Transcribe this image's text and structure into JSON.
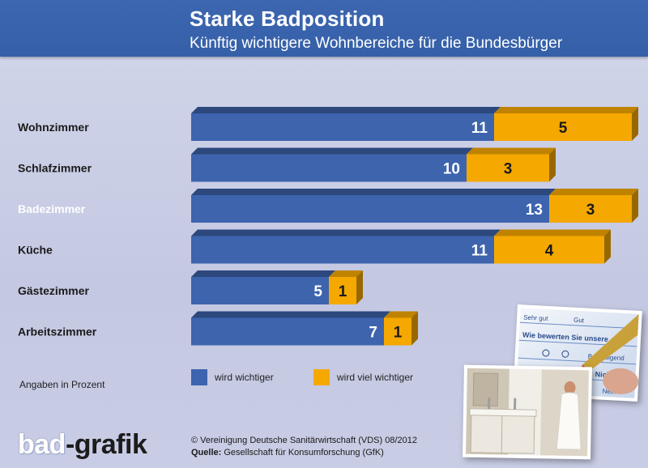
{
  "header": {
    "title": "Starke Badposition",
    "subtitle": "Künftig wichtigere Wohnbereiche für die Bundesbürger"
  },
  "chart_data": {
    "type": "bar",
    "orientation": "horizontal",
    "stacked": true,
    "categories": [
      "Wohnzimmer",
      "Schlafzimmer",
      "Badezimmer",
      "Küche",
      "Gästezimmer",
      "Arbeitszimmer"
    ],
    "highlighted_category": "Badezimmer",
    "series": [
      {
        "name": "wird wichtiger",
        "values": [
          11,
          10,
          13,
          11,
          5,
          7
        ],
        "color": "#3d64ad"
      },
      {
        "name": "wird viel wichtiger",
        "values": [
          5,
          3,
          3,
          4,
          1,
          1
        ],
        "color": "#f5a800"
      }
    ],
    "bar_style": "3d"
  },
  "note": "Angaben in Prozent",
  "logo": {
    "part1": "bad",
    "part2": "-grafik"
  },
  "footer": {
    "copyright": "© Vereinigung Deutsche Sanitärwirtschaft (VDS)  08/2012",
    "source_label": "Quelle:",
    "source_text": "Gesellschaft für Konsumforschung (GfK)"
  },
  "photo_questionnaire": {
    "texts": [
      "Wie bewerten Sie unsere",
      "Sehr gut",
      "Gut",
      "Befriedigend",
      "Nicht m",
      "Nein"
    ]
  },
  "colors": {
    "header": "#3d66b0",
    "blue_bar": "#3d64ad",
    "orange_bar": "#f5a800",
    "background": "#c8cce4"
  }
}
